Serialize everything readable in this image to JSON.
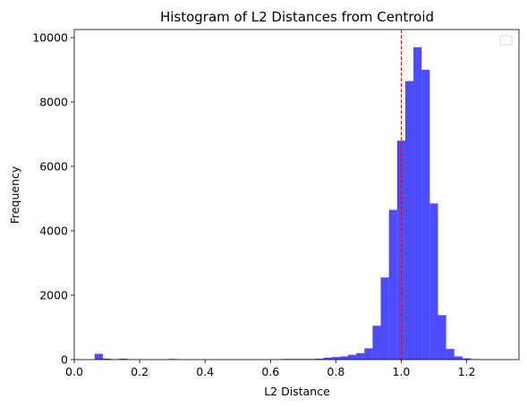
{
  "chart_data": {
    "type": "bar",
    "title": "Histogram of L2 Distances from Centroid",
    "xlabel": "L2 Distance",
    "ylabel": "Frequency",
    "xlim": [
      0.0,
      1.36
    ],
    "ylim": [
      0,
      10250
    ],
    "xticks": [
      0.0,
      0.2,
      0.4,
      0.6,
      0.8,
      1.0,
      1.2
    ],
    "xtick_labels": [
      "0.0",
      "0.2",
      "0.4",
      "0.6",
      "0.8",
      "1.0",
      "1.2"
    ],
    "yticks": [
      0,
      2000,
      4000,
      6000,
      8000,
      10000
    ],
    "ytick_labels": [
      "0",
      "2000",
      "4000",
      "6000",
      "8000",
      "10000"
    ],
    "bin_edges": [
      0.0623,
      0.0873,
      0.1123,
      0.1373,
      0.1623,
      0.1873,
      0.2123,
      0.2373,
      0.2623,
      0.2873,
      0.3123,
      0.3373,
      0.3623,
      0.3873,
      0.4123,
      0.4373,
      0.4623,
      0.4873,
      0.5123,
      0.5373,
      0.5623,
      0.5873,
      0.6123,
      0.6373,
      0.6623,
      0.6873,
      0.7123,
      0.7373,
      0.7623,
      0.7873,
      0.8123,
      0.8373,
      0.8623,
      0.8873,
      0.9123,
      0.9373,
      0.9623,
      0.9873,
      1.0123,
      1.0373,
      1.0623,
      1.0873,
      1.1123,
      1.1373,
      1.1623,
      1.1873,
      1.2123,
      1.2373,
      1.2623,
      1.2873,
      1.3123
    ],
    "counts": [
      180,
      30,
      10,
      30,
      10,
      0,
      5,
      0,
      0,
      20,
      0,
      0,
      0,
      0,
      0,
      0,
      0,
      0,
      0,
      0,
      0,
      0,
      10,
      20,
      20,
      20,
      20,
      30,
      60,
      80,
      100,
      150,
      200,
      350,
      1050,
      2550,
      4650,
      6800,
      8650,
      9700,
      9000,
      4850,
      1380,
      330,
      100,
      40,
      15,
      5,
      3,
      2
    ],
    "bar_color": "#0000ff",
    "bar_opacity": 0.7,
    "vline": {
      "x": 1.0,
      "color": "#ff0000",
      "style": "dashed"
    },
    "legend": {
      "placement": "upper-right",
      "entries": []
    },
    "grid": false
  }
}
